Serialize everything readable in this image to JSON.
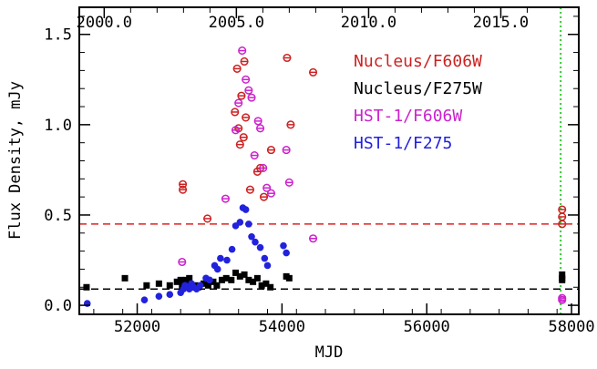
{
  "chart_data": {
    "type": "scatter",
    "title": "",
    "xlabel": "MJD",
    "ylabel": "Flux Density, mJy",
    "xlim": [
      51200,
      58100
    ],
    "ylim": [
      -0.05,
      1.65
    ],
    "x_ticks": [
      52000,
      54000,
      56000,
      58000
    ],
    "y_ticks": [
      0.0,
      0.5,
      1.0,
      1.5
    ],
    "top_axis_ticks": [
      {
        "label": "2000.0",
        "mjd": 51544
      },
      {
        "label": "2005.0",
        "mjd": 53370
      },
      {
        "label": "2010.0",
        "mjd": 55197
      },
      {
        "label": "2015.0",
        "mjd": 57023
      }
    ],
    "grid": false,
    "legend_position": "top-right",
    "reference_lines": [
      {
        "orientation": "horizontal",
        "value": 0.45,
        "color": "#e02020",
        "style": "dashed"
      },
      {
        "orientation": "horizontal",
        "value": 0.09,
        "color": "#000000",
        "style": "dashed"
      },
      {
        "orientation": "vertical",
        "value": 57850,
        "color": "#33cc33",
        "style": "dotted"
      }
    ],
    "series": [
      {
        "name": "Nucleus/F606W",
        "color": "#cc2222",
        "marker": "circle-dash",
        "points": [
          [
            52630,
            0.67
          ],
          [
            52630,
            0.64
          ],
          [
            52970,
            0.48
          ],
          [
            53350,
            1.07
          ],
          [
            53380,
            1.31
          ],
          [
            53400,
            0.98
          ],
          [
            53420,
            0.89
          ],
          [
            53440,
            1.16
          ],
          [
            53470,
            0.93
          ],
          [
            53480,
            1.35
          ],
          [
            53500,
            1.04
          ],
          [
            53560,
            0.64
          ],
          [
            53660,
            0.74
          ],
          [
            53700,
            0.76
          ],
          [
            53750,
            0.6
          ],
          [
            53850,
            0.86
          ],
          [
            54070,
            1.37
          ],
          [
            54120,
            1.0
          ],
          [
            54430,
            1.29
          ],
          [
            57870,
            0.53
          ],
          [
            57870,
            0.49
          ],
          [
            57870,
            0.45
          ]
        ]
      },
      {
        "name": "Nucleus/F275W",
        "color": "#000000",
        "marker": "square",
        "points": [
          [
            51300,
            0.1
          ],
          [
            51830,
            0.15
          ],
          [
            52130,
            0.11
          ],
          [
            52300,
            0.12
          ],
          [
            52450,
            0.11
          ],
          [
            52550,
            0.13
          ],
          [
            52600,
            0.14
          ],
          [
            52620,
            0.11
          ],
          [
            52650,
            0.13
          ],
          [
            52680,
            0.14
          ],
          [
            52700,
            0.12
          ],
          [
            52720,
            0.15
          ],
          [
            52760,
            0.1
          ],
          [
            52800,
            0.11
          ],
          [
            52840,
            0.1
          ],
          [
            52920,
            0.12
          ],
          [
            52980,
            0.11
          ],
          [
            53050,
            0.13
          ],
          [
            53100,
            0.11
          ],
          [
            53170,
            0.14
          ],
          [
            53230,
            0.15
          ],
          [
            53300,
            0.14
          ],
          [
            53360,
            0.18
          ],
          [
            53420,
            0.16
          ],
          [
            53480,
            0.17
          ],
          [
            53540,
            0.14
          ],
          [
            53600,
            0.13
          ],
          [
            53660,
            0.15
          ],
          [
            53720,
            0.11
          ],
          [
            53780,
            0.12
          ],
          [
            53840,
            0.1
          ],
          [
            54060,
            0.16
          ],
          [
            54100,
            0.15
          ],
          [
            57870,
            0.17
          ],
          [
            57870,
            0.15
          ],
          [
            57870,
            0.14
          ]
        ]
      },
      {
        "name": "HST-1/F606W",
        "color": "#cc22cc",
        "marker": "circle-dash",
        "points": [
          [
            52620,
            0.24
          ],
          [
            53220,
            0.59
          ],
          [
            53360,
            0.97
          ],
          [
            53400,
            1.12
          ],
          [
            53450,
            1.41
          ],
          [
            53500,
            1.25
          ],
          [
            53540,
            1.19
          ],
          [
            53580,
            1.15
          ],
          [
            53620,
            0.83
          ],
          [
            53670,
            1.02
          ],
          [
            53700,
            0.98
          ],
          [
            53740,
            0.76
          ],
          [
            53790,
            0.65
          ],
          [
            53850,
            0.62
          ],
          [
            54060,
            0.86
          ],
          [
            54100,
            0.68
          ],
          [
            54430,
            0.37
          ],
          [
            57870,
            0.04
          ],
          [
            57870,
            0.03
          ]
        ]
      },
      {
        "name": "HST-1/F275",
        "color": "#2222dd",
        "marker": "circle",
        "points": [
          [
            51310,
            0.01
          ],
          [
            52100,
            0.03
          ],
          [
            52300,
            0.05
          ],
          [
            52450,
            0.06
          ],
          [
            52600,
            0.07
          ],
          [
            52640,
            0.09
          ],
          [
            52660,
            0.11
          ],
          [
            52690,
            0.1
          ],
          [
            52720,
            0.09
          ],
          [
            52750,
            0.12
          ],
          [
            52780,
            0.1
          ],
          [
            52820,
            0.09
          ],
          [
            52870,
            0.11
          ],
          [
            52950,
            0.15
          ],
          [
            53000,
            0.14
          ],
          [
            53070,
            0.22
          ],
          [
            53110,
            0.2
          ],
          [
            53150,
            0.26
          ],
          [
            53240,
            0.25
          ],
          [
            53310,
            0.31
          ],
          [
            53360,
            0.44
          ],
          [
            53420,
            0.46
          ],
          [
            53460,
            0.54
          ],
          [
            53500,
            0.53
          ],
          [
            53540,
            0.45
          ],
          [
            53580,
            0.38
          ],
          [
            53630,
            0.35
          ],
          [
            53700,
            0.32
          ],
          [
            53760,
            0.26
          ],
          [
            53800,
            0.22
          ],
          [
            54020,
            0.33
          ],
          [
            54060,
            0.29
          ]
        ]
      }
    ]
  }
}
